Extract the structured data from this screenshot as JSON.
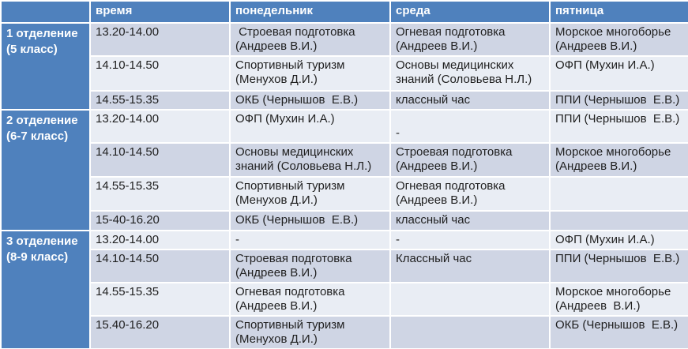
{
  "table": {
    "columns": [
      "",
      "время",
      "понедельник",
      "среда",
      "пятница"
    ],
    "groups": [
      {
        "label": "1 отделение\n(5 класс)",
        "rows": [
          [
            "13.20-14.00",
            " Строевая подготовка\n(Андреев В.И.)",
            "Огневая подготовка\n(Андреев В.И.)",
            "Морское многоборье\n(Андреев В.И.)"
          ],
          [
            "14.10-14.50",
            "Спортивный туризм\n(Менухов Д.И.)",
            "Основы медицинских\nзнаний (Соловьева Н.Л.)",
            "ОФП (Мухин И.А.)"
          ],
          [
            "14.55-15.35",
            "ОКБ (Чернышов  Е.В.)",
            "классный час",
            "ППИ (Чернышов  Е.В.)"
          ]
        ]
      },
      {
        "label": "2 отделение\n(6-7 класс)",
        "rows": [
          [
            "13.20-14.00",
            "ОФП (Мухин И.А.)",
            "\n-",
            "ППИ (Чернышов  Е.В.)"
          ],
          [
            "14.10-14.50",
            "Основы медицинских\nзнаний (Соловьева Н.Л.)",
            "Строевая подготовка\n(Андреев В.И.)",
            "Морское многоборье\n(Андреев В.И.)"
          ],
          [
            "14.55-15.35",
            "Спортивный туризм\n(Менухов Д.И.)",
            "Огневая подготовка\n(Андреев В.И.)",
            ""
          ],
          [
            "15-40-16.20",
            "ОКБ (Чернышов  Е.В.)",
            "классный час",
            ""
          ]
        ]
      },
      {
        "label": "3 отделение\n(8-9 класс)",
        "rows": [
          [
            "13.20-14.00",
            "-",
            "-",
            "ОФП (Мухин И.А.)"
          ],
          [
            "14.10-14.50",
            "Строевая подготовка\n(Андреев В.И.)",
            "Классный час",
            "ППИ (Чернышов  Е.В.)"
          ],
          [
            "14.55-15.35",
            "Огневая подготовка\n(Андреев В.И.)",
            "",
            "Морское многоборье\n(Андреев  В.И.)"
          ],
          [
            "15.40-16.20",
            "Спортивный туризм\n(Менухов Д.И.)",
            "",
            "ОКБ (Чернышов  Е.В.)"
          ]
        ]
      }
    ]
  },
  "colors": {
    "header_blue": "#4F81BD",
    "band_dark": "#CFD5E4",
    "band_light": "#E9EDF4",
    "border": "#FFFFFF",
    "body_text": "#1F1F1F"
  }
}
